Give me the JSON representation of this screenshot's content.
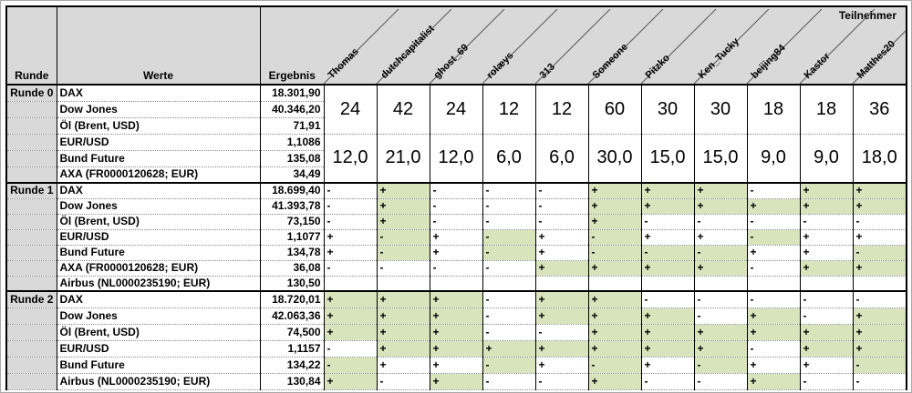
{
  "header": {
    "runde": "Runde",
    "werte": "Werte",
    "ergebnis": "Ergebnis",
    "teilnehmer": "Teilnehmer"
  },
  "participants": [
    "Thomas",
    "dutchcapitalist",
    "ghost_69",
    "rolæys",
    "313",
    "Someone",
    "Pitzko",
    "Ken_Tucky",
    "beijing84",
    "Kastor",
    "Matthes20"
  ],
  "colors": {
    "header_bg": "#d9d9d9",
    "correct_bg": "#d8e4bc",
    "grid_border": "#000000"
  },
  "rounds": [
    {
      "label": "Runde 0",
      "rows": [
        {
          "name": "DAX",
          "value": "18.301,90"
        },
        {
          "name": "Dow Jones",
          "value": "40.346,20"
        },
        {
          "name": "Öl (Brent, USD)",
          "value": "71,91"
        },
        {
          "name": "EUR/USD",
          "value": "1,1086"
        },
        {
          "name": "Bund Future",
          "value": "135,08"
        },
        {
          "name": "AXA (FR0000120628; EUR)",
          "value": "34,49"
        }
      ],
      "merged_totals": {
        "top": [
          "24",
          "42",
          "24",
          "12",
          "12",
          "60",
          "30",
          "30",
          "18",
          "18",
          "36"
        ],
        "bottom": [
          "12,0",
          "21,0",
          "12,0",
          "6,0",
          "6,0",
          "30,0",
          "15,0",
          "15,0",
          "9,0",
          "9,0",
          "18,0"
        ]
      }
    },
    {
      "label": "Runde 1",
      "rows": [
        {
          "name": "DAX",
          "value": "18.699,40",
          "signs": [
            "-",
            "+",
            "-",
            "-",
            "-",
            "+",
            "+",
            "+",
            "-",
            "+",
            "+"
          ],
          "correct": [
            0,
            1,
            0,
            0,
            0,
            1,
            1,
            1,
            0,
            1,
            1
          ]
        },
        {
          "name": "Dow Jones",
          "value": "41.393,78",
          "signs": [
            "-",
            "+",
            "-",
            "-",
            "-",
            "+",
            "+",
            "+",
            "+",
            "+",
            "+"
          ],
          "correct": [
            0,
            1,
            0,
            0,
            0,
            1,
            1,
            1,
            1,
            1,
            1
          ]
        },
        {
          "name": "Öl (Brent, USD)",
          "value": "73,150",
          "signs": [
            "-",
            "+",
            "-",
            "-",
            "-",
            "+",
            "-",
            "-",
            "-",
            "-",
            "-"
          ],
          "correct": [
            0,
            1,
            0,
            0,
            0,
            1,
            0,
            0,
            0,
            0,
            0
          ]
        },
        {
          "name": "EUR/USD",
          "value": "1,1077",
          "signs": [
            "+",
            "-",
            "+",
            "-",
            "+",
            "-",
            "+",
            "+",
            "-",
            "+",
            "+"
          ],
          "correct": [
            0,
            1,
            0,
            1,
            0,
            1,
            0,
            0,
            1,
            0,
            0
          ]
        },
        {
          "name": "Bund Future",
          "value": "134,78",
          "signs": [
            "+",
            "-",
            "+",
            "-",
            "+",
            "-",
            "-",
            "-",
            "+",
            "+",
            "-"
          ],
          "correct": [
            0,
            1,
            0,
            1,
            0,
            1,
            1,
            1,
            0,
            0,
            1
          ]
        },
        {
          "name": "AXA (FR0000120628; EUR)",
          "value": "36,08",
          "signs": [
            "-",
            "-",
            "-",
            "-",
            "+",
            "+",
            "+",
            "+",
            "-",
            "+",
            "+"
          ],
          "correct": [
            0,
            0,
            0,
            0,
            1,
            1,
            1,
            1,
            0,
            1,
            1
          ]
        },
        {
          "name": "Airbus (NL0000235190; EUR)",
          "value": "130,50",
          "signs": [],
          "correct": []
        }
      ]
    },
    {
      "label": "Runde 2",
      "rows": [
        {
          "name": "DAX",
          "value": "18.720,01",
          "signs": [
            "+",
            "+",
            "+",
            "-",
            "+",
            "+",
            "-",
            "-",
            "-",
            "-",
            "-"
          ],
          "correct": [
            1,
            1,
            1,
            0,
            1,
            1,
            0,
            0,
            0,
            0,
            0
          ]
        },
        {
          "name": "Dow Jones",
          "value": "42.063,36",
          "signs": [
            "+",
            "+",
            "+",
            "-",
            "+",
            "+",
            "+",
            "-",
            "+",
            "-",
            "+"
          ],
          "correct": [
            1,
            1,
            1,
            0,
            1,
            1,
            1,
            0,
            1,
            0,
            1
          ]
        },
        {
          "name": "Öl (Brent, USD)",
          "value": "74,500",
          "signs": [
            "+",
            "+",
            "+",
            "-",
            "-",
            "+",
            "+",
            "+",
            "+",
            "+",
            "+"
          ],
          "correct": [
            1,
            1,
            1,
            0,
            0,
            1,
            1,
            1,
            1,
            1,
            1
          ]
        },
        {
          "name": "EUR/USD",
          "value": "1,1157",
          "signs": [
            "-",
            "+",
            "+",
            "+",
            "+",
            "+",
            "+",
            "+",
            "-",
            "+",
            "+"
          ],
          "correct": [
            0,
            1,
            1,
            1,
            1,
            1,
            1,
            1,
            0,
            1,
            1
          ]
        },
        {
          "name": "Bund Future",
          "value": "134,22",
          "signs": [
            "-",
            "+",
            "+",
            "-",
            "+",
            "-",
            "+",
            "-",
            "+",
            "+",
            "-"
          ],
          "correct": [
            1,
            0,
            0,
            1,
            0,
            1,
            0,
            1,
            0,
            0,
            1
          ]
        },
        {
          "name": "Airbus (NL0000235190; EUR)",
          "value": "130,84",
          "signs": [
            "+",
            "-",
            "+",
            "-",
            "-",
            "+",
            "-",
            "-",
            "+",
            "-",
            "-"
          ],
          "correct": [
            1,
            0,
            1,
            0,
            0,
            1,
            0,
            0,
            1,
            0,
            0
          ]
        }
      ]
    }
  ]
}
